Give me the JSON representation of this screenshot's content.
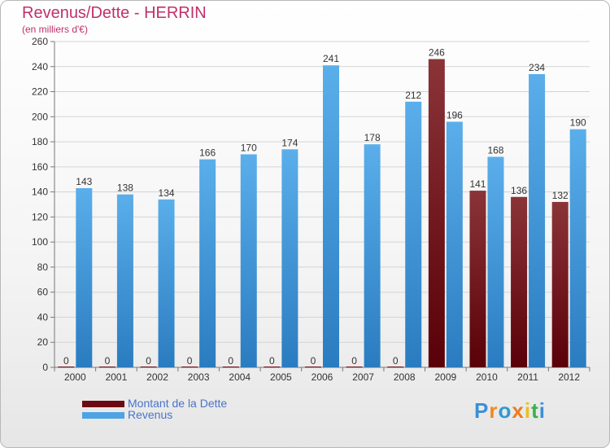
{
  "chart_data": {
    "type": "bar",
    "title": "Revenus/Dette - HERRIN",
    "subtitle": "(en milliers d'€)",
    "categories": [
      "2000",
      "2001",
      "2002",
      "2003",
      "2004",
      "2005",
      "2006",
      "2007",
      "2008",
      "2009",
      "2010",
      "2011",
      "2012"
    ],
    "series": [
      {
        "name": "Montant de la Dette",
        "color": "#6b0a12",
        "values": [
          0,
          0,
          0,
          0,
          0,
          0,
          0,
          0,
          0,
          246,
          141,
          136,
          132
        ]
      },
      {
        "name": "Revenus",
        "color": "#4da3e4",
        "values": [
          143,
          138,
          134,
          166,
          170,
          174,
          241,
          178,
          212,
          196,
          168,
          234,
          190
        ]
      }
    ],
    "ylim": [
      0,
      260
    ],
    "yticks": [
      0,
      20,
      40,
      60,
      80,
      100,
      120,
      140,
      160,
      180,
      200,
      220,
      240,
      260
    ],
    "grid": true,
    "legend_position": "bottom-left"
  },
  "logo": {
    "text": "Proxiti",
    "letters": [
      "P",
      "r",
      "o",
      "x",
      "i",
      "t",
      "i"
    ],
    "colors": [
      "#3a8fd8",
      "#f08a1c",
      "#2e9ad0",
      "#f07a1a",
      "#e8c21c",
      "#3ab04a",
      "#3a8fd8"
    ]
  }
}
